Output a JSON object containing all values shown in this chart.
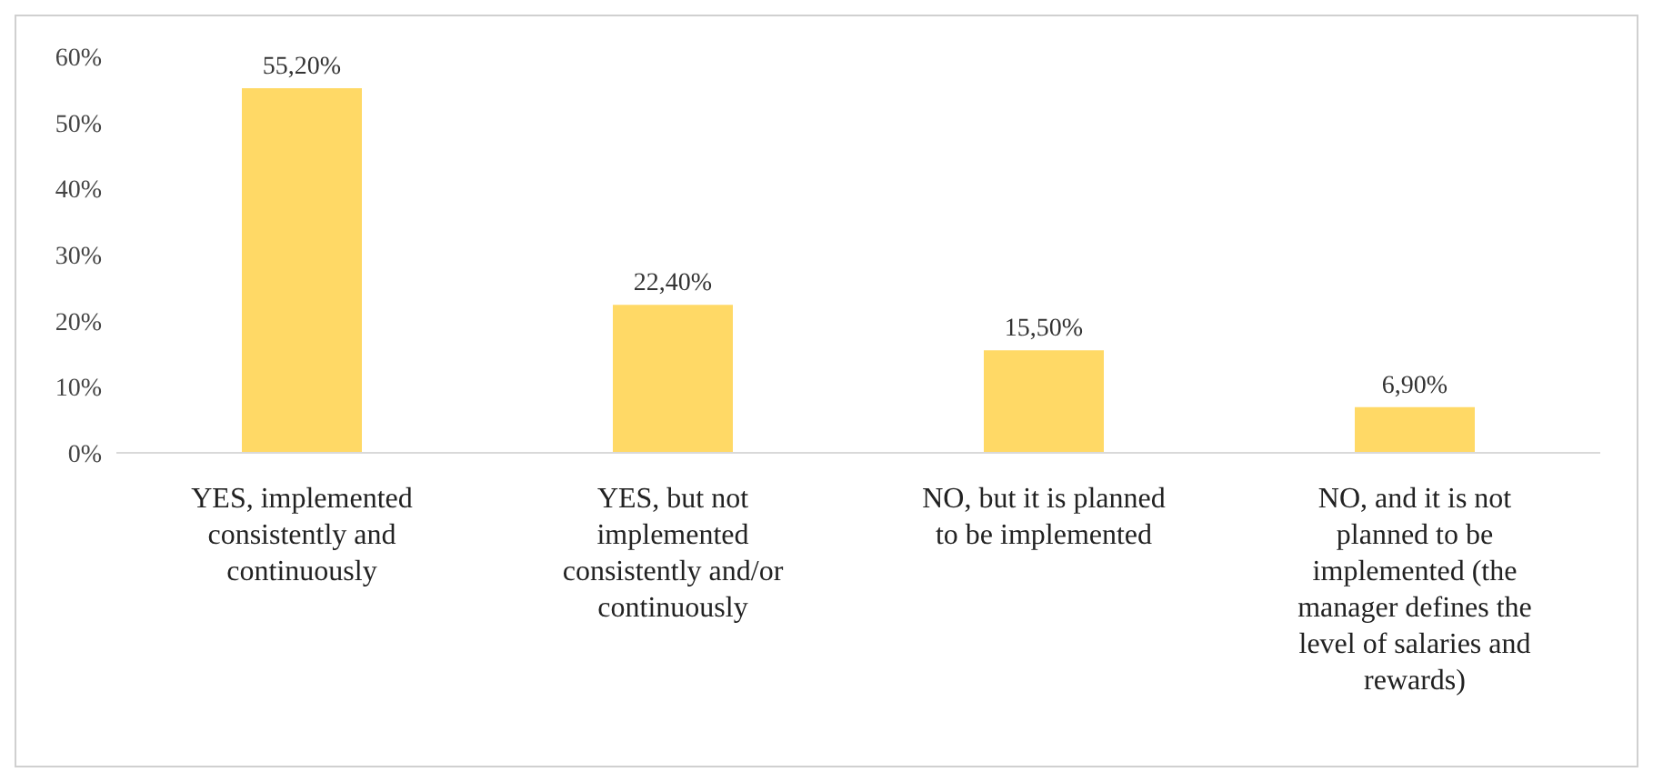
{
  "chart_data": {
    "type": "bar",
    "categories": [
      "YES, implemented consistently and continuously",
      "YES, but not implemented consistently and/or continuously",
      "NO, but it is planned to be implemented",
      "NO, and it is not planned to be implemented (the manager defines the level of salaries and rewards)"
    ],
    "values": [
      55.2,
      22.4,
      15.5,
      6.9
    ],
    "value_labels": [
      "55,20%",
      "22,40%",
      "15,50%",
      "6,90%"
    ],
    "color": "#ffd966",
    "ylim": [
      0,
      60
    ],
    "yticks": [
      {
        "value": 0,
        "label": "0%"
      },
      {
        "value": 10,
        "label": "10%"
      },
      {
        "value": 20,
        "label": "20%"
      },
      {
        "value": 30,
        "label": "30%"
      },
      {
        "value": 40,
        "label": "40%"
      },
      {
        "value": 50,
        "label": "50%"
      },
      {
        "value": 60,
        "label": "60%"
      }
    ],
    "grid": false,
    "legend": false
  }
}
